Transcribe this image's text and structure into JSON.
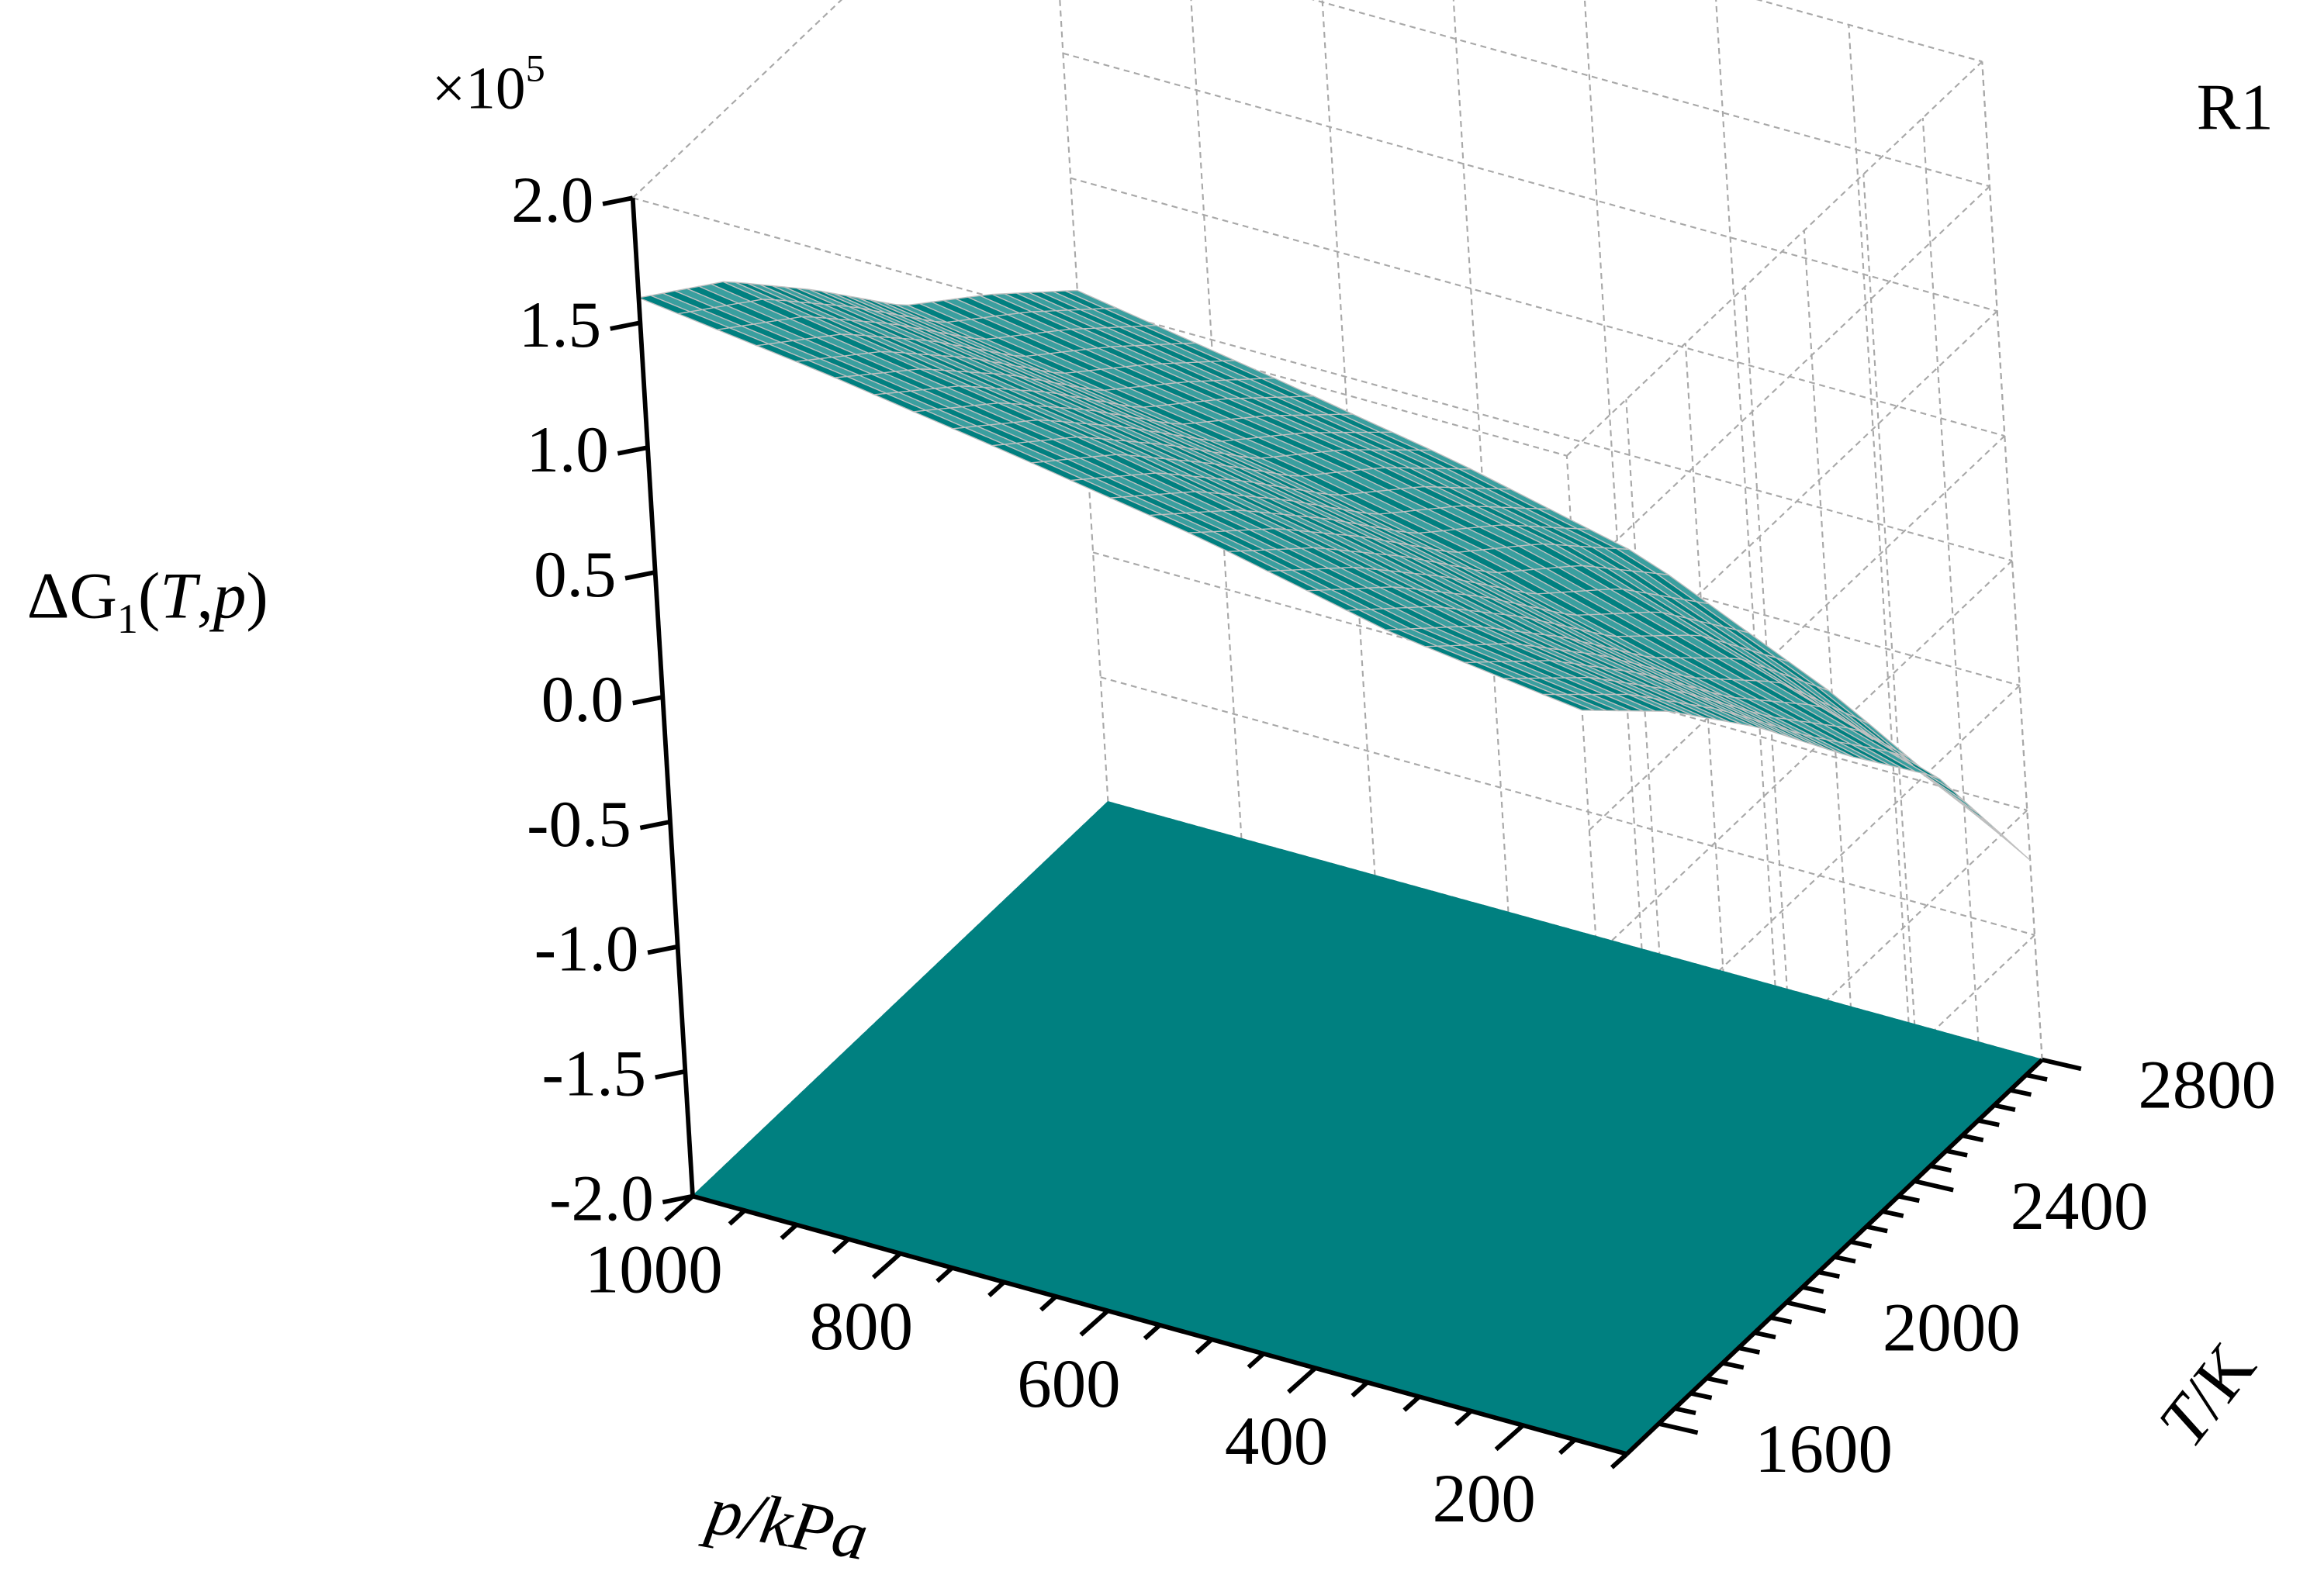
{
  "chart_data": {
    "type": "surface3d",
    "title": "",
    "panel_label": "R1",
    "z_multiplier": "×10",
    "z_multiplier_exp": "5",
    "zlabel": {
      "main": "ΔG",
      "sub": "1",
      "open": "(",
      "t": "T",
      "comma": ",",
      "p": "p",
      "close": ")"
    },
    "xlabel": {
      "var": "p",
      "unit": "/kPa"
    },
    "ylabel": {
      "var": "T",
      "unit": "/K"
    },
    "z_ticks": [
      "2.0",
      "1.5",
      "1.0",
      "0.5",
      "0.0",
      "-0.5",
      "-1.0",
      "-1.5",
      "-2.0"
    ],
    "p_ticks": [
      "1000",
      "800",
      "600",
      "400",
      "200"
    ],
    "t_ticks": [
      "1600",
      "2000",
      "2400",
      "2800"
    ],
    "zlim": [
      -2.0,
      2.0
    ],
    "plim": [
      1000,
      100
    ],
    "tlim": [
      1500,
      2800
    ],
    "grid": true,
    "series": [
      {
        "kind": "surface",
        "colors": {
          "mesh": "#008080",
          "underside": "#c0c0c0"
        },
        "p": [
          1000,
          800,
          600,
          400,
          200,
          100
        ],
        "T": [
          1500,
          1800,
          2100,
          2400,
          2600,
          2800
        ],
        "z": [
          [
            1.6,
            1.35,
            1.0,
            0.62,
            0.35,
            0.05
          ],
          [
            1.5,
            1.22,
            0.88,
            0.5,
            0.22,
            -0.08
          ],
          [
            1.38,
            1.1,
            0.75,
            0.38,
            0.1,
            -0.22
          ],
          [
            1.25,
            0.95,
            0.6,
            0.22,
            -0.06,
            -0.4
          ],
          [
            1.08,
            0.78,
            0.42,
            0.02,
            -0.3,
            -0.75
          ],
          [
            0.98,
            0.66,
            0.28,
            -0.15,
            -0.55,
            -1.2
          ]
        ]
      },
      {
        "kind": "floor_projection",
        "color": "#008080",
        "z": -2.0,
        "p_range": [
          1000,
          100
        ],
        "T_range": [
          1500,
          2800
        ]
      }
    ]
  }
}
